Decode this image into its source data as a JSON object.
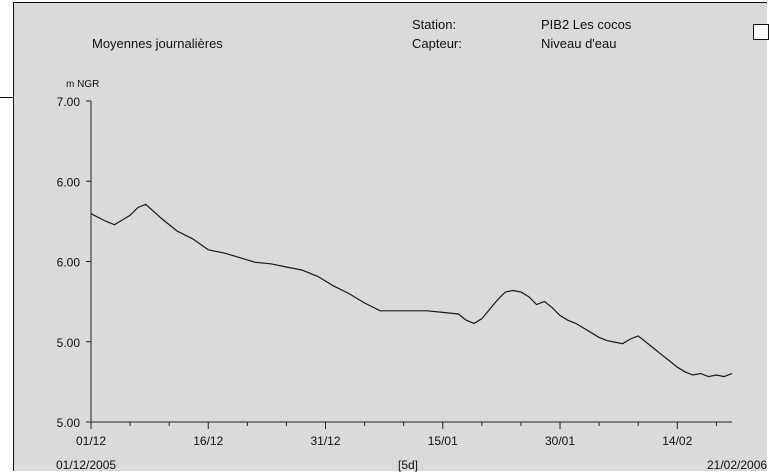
{
  "header": {
    "subtitle": "Moyennes journalières",
    "station_label": "Station:",
    "station_value": "PIB2 Les cocos",
    "sensor_label": "Capteur:",
    "sensor_value": "Niveau d'eau"
  },
  "chart_data": {
    "type": "line",
    "ylabel": "m NGR",
    "y_tick_labels": [
      "7.00",
      "6.00",
      "6.00",
      "5.00",
      "5.00"
    ],
    "x_tick_labels": [
      "01/12",
      "16/12",
      "31/12",
      "15/01",
      "30/01",
      "14/02"
    ],
    "x_start_label": "01/12/2005",
    "x_end_label": "21/02/2006",
    "x_interval_label": "[5d]",
    "grid": false,
    "legend": "none",
    "x_range": [
      "2005-12-01",
      "2006-02-21"
    ],
    "series": [
      {
        "color": "#1a1a1a",
        "points": [
          [
            "2005-12-01",
            6.28
          ],
          [
            "2005-12-03",
            6.23
          ],
          [
            "2005-12-04",
            6.21
          ],
          [
            "2005-12-06",
            6.27
          ],
          [
            "2005-12-07",
            6.32
          ],
          [
            "2005-12-08",
            6.34
          ],
          [
            "2005-12-10",
            6.25
          ],
          [
            "2005-12-12",
            6.17
          ],
          [
            "2005-12-14",
            6.12
          ],
          [
            "2005-12-16",
            6.05
          ],
          [
            "2005-12-18",
            6.03
          ],
          [
            "2005-12-20",
            6.0
          ],
          [
            "2005-12-22",
            5.97
          ],
          [
            "2005-12-24",
            5.96
          ],
          [
            "2005-12-26",
            5.94
          ],
          [
            "2005-12-28",
            5.92
          ],
          [
            "2005-12-30",
            5.88
          ],
          [
            "2006-01-01",
            5.82
          ],
          [
            "2006-01-03",
            5.77
          ],
          [
            "2006-01-05",
            5.71
          ],
          [
            "2006-01-07",
            5.66
          ],
          [
            "2006-01-09",
            5.66
          ],
          [
            "2006-01-11",
            5.66
          ],
          [
            "2006-01-13",
            5.66
          ],
          [
            "2006-01-15",
            5.65
          ],
          [
            "2006-01-17",
            5.64
          ],
          [
            "2006-01-18",
            5.6
          ],
          [
            "2006-01-19",
            5.58
          ],
          [
            "2006-01-20",
            5.61
          ],
          [
            "2006-01-21",
            5.67
          ],
          [
            "2006-01-22",
            5.73
          ],
          [
            "2006-01-23",
            5.78
          ],
          [
            "2006-01-24",
            5.79
          ],
          [
            "2006-01-25",
            5.78
          ],
          [
            "2006-01-26",
            5.75
          ],
          [
            "2006-01-27",
            5.7
          ],
          [
            "2006-01-28",
            5.72
          ],
          [
            "2006-01-29",
            5.68
          ],
          [
            "2006-01-30",
            5.63
          ],
          [
            "2006-01-31",
            5.6
          ],
          [
            "2006-02-01",
            5.58
          ],
          [
            "2006-02-02",
            5.55
          ],
          [
            "2006-02-03",
            5.52
          ],
          [
            "2006-02-04",
            5.49
          ],
          [
            "2006-02-05",
            5.47
          ],
          [
            "2006-02-06",
            5.46
          ],
          [
            "2006-02-07",
            5.45
          ],
          [
            "2006-02-08",
            5.48
          ],
          [
            "2006-02-09",
            5.5
          ],
          [
            "2006-02-10",
            5.46
          ],
          [
            "2006-02-11",
            5.42
          ],
          [
            "2006-02-12",
            5.38
          ],
          [
            "2006-02-13",
            5.34
          ],
          [
            "2006-02-14",
            5.3
          ],
          [
            "2006-02-15",
            5.27
          ],
          [
            "2006-02-16",
            5.25
          ],
          [
            "2006-02-17",
            5.26
          ],
          [
            "2006-02-18",
            5.24
          ],
          [
            "2006-02-19",
            5.25
          ],
          [
            "2006-02-20",
            5.24
          ],
          [
            "2006-02-21",
            5.26
          ]
        ]
      }
    ]
  }
}
